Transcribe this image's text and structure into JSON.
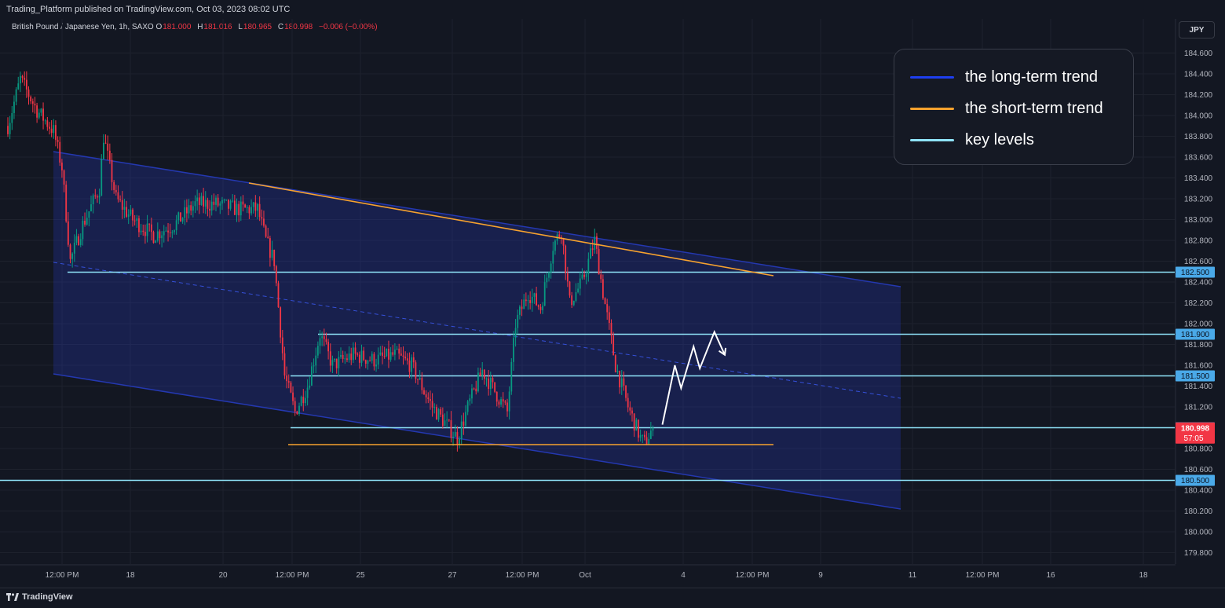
{
  "header": {
    "published": "Trading_Platform published on TradingView.com, Oct 03, 2023 08:02 UTC",
    "symbol": "British Pound / Japanese Yen, 1h, SAXO",
    "open_label": "O",
    "open": "181.000",
    "high_label": "H",
    "high": "181.016",
    "low_label": "L",
    "low": "180.965",
    "close_label": "C",
    "close": "180.998",
    "change": "−0.006 (−0.00%)",
    "currency": "JPY"
  },
  "legend": {
    "items": [
      {
        "label": "the long-term trend",
        "color": "#1e3ff0"
      },
      {
        "label": "the short-term trend",
        "color": "#f7a22e"
      },
      {
        "label": "key levels",
        "color": "#8fe3f8"
      }
    ]
  },
  "footer": {
    "brand": "TradingView"
  },
  "chart_data": {
    "type": "candlestick",
    "symbol": "British Pound / Japanese Yen",
    "interval": "1h",
    "ylim": [
      179.7,
      184.75
    ],
    "y_ticks": [
      "184.600",
      "184.400",
      "184.200",
      "184.000",
      "183.800",
      "183.600",
      "183.400",
      "183.200",
      "183.000",
      "182.800",
      "182.600",
      "182.400",
      "182.200",
      "182.000",
      "181.800",
      "181.600",
      "181.400",
      "181.200",
      "181.000",
      "180.800",
      "180.600",
      "180.400",
      "180.200",
      "180.000",
      "179.800"
    ],
    "x_ticks": [
      "12:00 PM",
      "18",
      "20",
      "12:00 PM",
      "25",
      "27",
      "12:00 PM",
      "Oct",
      "4",
      "12:00 PM",
      "9",
      "11",
      "12:00 PM",
      "16",
      "18"
    ],
    "key_levels": [
      "182.500",
      "181.900",
      "181.500",
      "181.000",
      "180.500"
    ],
    "price_label": {
      "value": "180.998",
      "countdown": "57:05",
      "color": "#f23645"
    },
    "candle_colors": {
      "up": "#089981",
      "down": "#f23645"
    },
    "price_path": [
      {
        "bar": 0,
        "price": 183.9
      },
      {
        "bar": 6,
        "price": 184.35
      },
      {
        "bar": 14,
        "price": 184.05
      },
      {
        "bar": 22,
        "price": 183.85
      },
      {
        "bar": 26,
        "price": 183.5
      },
      {
        "bar": 30,
        "price": 182.6
      },
      {
        "bar": 36,
        "price": 182.95
      },
      {
        "bar": 44,
        "price": 183.3
      },
      {
        "bar": 46,
        "price": 183.8
      },
      {
        "bar": 52,
        "price": 183.2
      },
      {
        "bar": 60,
        "price": 183.0
      },
      {
        "bar": 70,
        "price": 182.85
      },
      {
        "bar": 80,
        "price": 182.95
      },
      {
        "bar": 90,
        "price": 183.15
      },
      {
        "bar": 100,
        "price": 183.15
      },
      {
        "bar": 110,
        "price": 183.1
      },
      {
        "bar": 120,
        "price": 183.1
      },
      {
        "bar": 124,
        "price": 182.8
      },
      {
        "bar": 128,
        "price": 182.6
      },
      {
        "bar": 133,
        "price": 181.5
      },
      {
        "bar": 138,
        "price": 181.15
      },
      {
        "bar": 144,
        "price": 181.4
      },
      {
        "bar": 150,
        "price": 181.9
      },
      {
        "bar": 156,
        "price": 181.6
      },
      {
        "bar": 166,
        "price": 181.7
      },
      {
        "bar": 176,
        "price": 181.65
      },
      {
        "bar": 186,
        "price": 181.7
      },
      {
        "bar": 194,
        "price": 181.6
      },
      {
        "bar": 200,
        "price": 181.35
      },
      {
        "bar": 204,
        "price": 181.2
      },
      {
        "bar": 210,
        "price": 181.05
      },
      {
        "bar": 216,
        "price": 180.9
      },
      {
        "bar": 222,
        "price": 181.25
      },
      {
        "bar": 228,
        "price": 181.55
      },
      {
        "bar": 234,
        "price": 181.35
      },
      {
        "bar": 240,
        "price": 181.15
      },
      {
        "bar": 244,
        "price": 182.0
      },
      {
        "bar": 250,
        "price": 182.3
      },
      {
        "bar": 256,
        "price": 182.15
      },
      {
        "bar": 262,
        "price": 182.75
      },
      {
        "bar": 266,
        "price": 182.9
      },
      {
        "bar": 270,
        "price": 182.2
      },
      {
        "bar": 276,
        "price": 182.4
      },
      {
        "bar": 282,
        "price": 182.8
      },
      {
        "bar": 286,
        "price": 182.3
      },
      {
        "bar": 292,
        "price": 181.6
      },
      {
        "bar": 298,
        "price": 181.2
      },
      {
        "bar": 304,
        "price": 180.9
      },
      {
        "bar": 306,
        "price": 180.85
      },
      {
        "bar": 310,
        "price": 181.0
      }
    ],
    "projection": [
      {
        "bar": 310,
        "price": 181.03
      },
      {
        "bar": 316,
        "price": 181.6
      },
      {
        "bar": 319,
        "price": 181.38
      },
      {
        "bar": 325,
        "price": 181.78
      },
      {
        "bar": 328,
        "price": 181.57
      },
      {
        "bar": 335,
        "price": 181.92
      },
      {
        "bar": 340,
        "price": 181.7
      }
    ]
  }
}
